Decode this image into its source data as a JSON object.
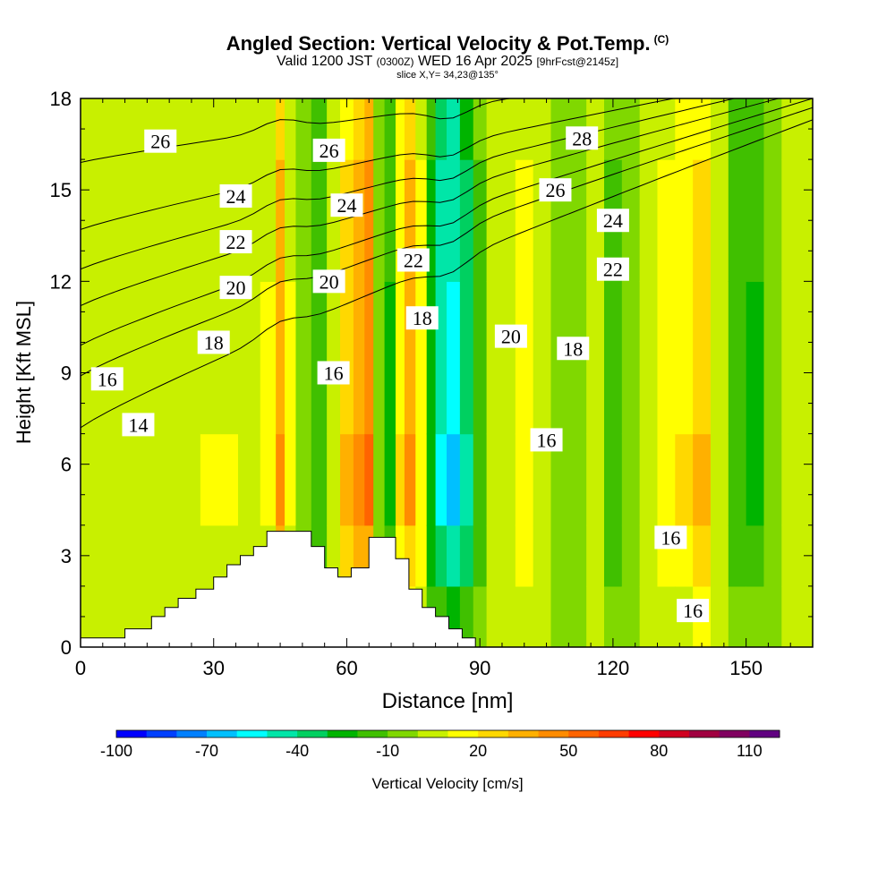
{
  "header": {
    "title": "Angled Section: Vertical Velocity & Pot.Temp.",
    "title_mark": "(C)",
    "valid_prefix": "Valid 1200 JST",
    "valid_utc": "(0300Z)",
    "valid_date": "WED 16 Apr 2025",
    "forecast": "[9hrFcst@2145z]",
    "slice": "slice X,Y= 34,23@135°"
  },
  "chart_data": {
    "type": "heatmap",
    "xlabel": "Distance [nm]",
    "ylabel": "Height [Kft MSL]",
    "xlim": [
      0,
      165
    ],
    "ylim": [
      0,
      18
    ],
    "x_ticks": [
      0,
      30,
      60,
      90,
      120,
      150
    ],
    "y_ticks": [
      0,
      3,
      6,
      9,
      12,
      15,
      18
    ],
    "colorbar": {
      "label": "Vertical Velocity [cm/s]",
      "min": -100,
      "max": 120,
      "step": 10,
      "tick_labels": [
        "-100",
        "-70",
        "-40",
        "-10",
        "20",
        "50",
        "80",
        "110"
      ],
      "colors": [
        "#0000ff",
        "#0040ff",
        "#0080ff",
        "#00c0ff",
        "#00ffff",
        "#00e6a8",
        "#00d060",
        "#00b400",
        "#40c000",
        "#80d800",
        "#c8f000",
        "#ffff00",
        "#ffd800",
        "#ffb000",
        "#ff8c00",
        "#ff6400",
        "#ff3c00",
        "#ff0000",
        "#d00020",
        "#a00040",
        "#800060",
        "#600080"
      ]
    },
    "columns": [
      {
        "x": 0,
        "w": 5
      },
      {
        "x": 5,
        "w": 4
      },
      {
        "x": 8,
        "w": 5
      },
      {
        "x": 12,
        "w": 5
      },
      {
        "x": 16,
        "w": 3
      },
      {
        "x": 20,
        "w": 4
      },
      {
        "x": 24,
        "w": 6
      },
      {
        "x": 30,
        "w": 10
      },
      {
        "x": 33,
        "w": 10
      },
      {
        "x": 38,
        "w": 0
      },
      {
        "x": 43,
        "w": 12
      },
      {
        "x": 45,
        "w": 45
      },
      {
        "x": 47,
        "w": 12
      },
      {
        "x": 50,
        "w": -10
      },
      {
        "x": 54,
        "w": -20
      },
      {
        "x": 57,
        "w": 5
      },
      {
        "x": 60,
        "w": 30
      },
      {
        "x": 63,
        "w": 45
      },
      {
        "x": 65,
        "w": 55
      },
      {
        "x": 67,
        "w": -5
      },
      {
        "x": 70,
        "w": -25
      },
      {
        "x": 72,
        "w": 20
      },
      {
        "x": 74,
        "w": 40
      },
      {
        "x": 77,
        "w": 15
      },
      {
        "x": 79,
        "w": -30
      },
      {
        "x": 81,
        "w": -55
      },
      {
        "x": 84,
        "w": -65
      },
      {
        "x": 87,
        "w": -45
      },
      {
        "x": 90,
        "w": -15
      },
      {
        "x": 93,
        "w": 0
      },
      {
        "x": 96,
        "w": 8
      },
      {
        "x": 100,
        "w": 15
      },
      {
        "x": 104,
        "w": 3
      },
      {
        "x": 108,
        "w": -10
      },
      {
        "x": 112,
        "w": -5
      },
      {
        "x": 116,
        "w": 0
      },
      {
        "x": 120,
        "w": -15
      },
      {
        "x": 124,
        "w": -8
      },
      {
        "x": 128,
        "w": 5
      },
      {
        "x": 132,
        "w": 15
      },
      {
        "x": 136,
        "w": 20
      },
      {
        "x": 140,
        "w": 30
      },
      {
        "x": 144,
        "w": 5
      },
      {
        "x": 148,
        "w": -20
      },
      {
        "x": 152,
        "w": -25
      },
      {
        "x": 156,
        "w": -10
      },
      {
        "x": 160,
        "w": 3
      },
      {
        "x": 165,
        "w": 3
      }
    ],
    "terrain": [
      [
        0,
        0.3
      ],
      [
        10,
        0.3
      ],
      [
        10,
        0.6
      ],
      [
        16,
        0.6
      ],
      [
        16,
        1.0
      ],
      [
        19,
        1.0
      ],
      [
        19,
        1.3
      ],
      [
        22,
        1.3
      ],
      [
        22,
        1.6
      ],
      [
        26,
        1.6
      ],
      [
        26,
        1.9
      ],
      [
        30,
        1.9
      ],
      [
        30,
        2.3
      ],
      [
        33,
        2.3
      ],
      [
        33,
        2.7
      ],
      [
        36,
        2.7
      ],
      [
        36,
        3.0
      ],
      [
        39,
        3.0
      ],
      [
        39,
        3.3
      ],
      [
        42,
        3.3
      ],
      [
        42,
        3.8
      ],
      [
        52,
        3.8
      ],
      [
        52,
        3.3
      ],
      [
        55,
        3.3
      ],
      [
        55,
        2.6
      ],
      [
        58,
        2.6
      ],
      [
        58,
        2.3
      ],
      [
        61,
        2.3
      ],
      [
        61,
        2.6
      ],
      [
        65,
        2.6
      ],
      [
        65,
        3.6
      ],
      [
        71,
        3.6
      ],
      [
        71,
        2.9
      ],
      [
        74,
        2.9
      ],
      [
        74,
        1.9
      ],
      [
        77,
        1.9
      ],
      [
        77,
        1.3
      ],
      [
        80,
        1.3
      ],
      [
        80,
        1.0
      ],
      [
        83,
        1.0
      ],
      [
        83,
        0.6
      ],
      [
        86,
        0.6
      ],
      [
        86,
        0.3
      ],
      [
        89,
        0.3
      ],
      [
        89,
        0
      ]
    ],
    "theta_contours": [
      {
        "value": "14",
        "y0": 7.2,
        "y1": 17.3,
        "label_x": 13,
        "label_y": 7.3
      },
      {
        "value": "16",
        "y0": 8.9,
        "y1": 17.7,
        "label_x": 6,
        "label_y": 8.8
      },
      {
        "value": "18",
        "y0": 9.9,
        "y1": 18.0,
        "label_x": 30,
        "label_y": 10.0
      },
      {
        "value": "20",
        "y0": 11.2,
        "y1": 18.3,
        "label_x": 35,
        "label_y": 11.8
      },
      {
        "value": "22",
        "y0": 12.4,
        "y1": 18.6,
        "label_x": 35,
        "label_y": 13.3
      },
      {
        "value": "24",
        "y0": 13.7,
        "y1": 18.9,
        "label_x": 35,
        "label_y": 14.8
      },
      {
        "value": "26",
        "y0": 15.9,
        "y1": 19.3,
        "label_x": 18,
        "label_y": 16.6
      }
    ],
    "contour_labels": [
      {
        "text": "14",
        "x": 13,
        "y": 7.3
      },
      {
        "text": "16",
        "x": 6,
        "y": 8.8
      },
      {
        "text": "16",
        "x": 57,
        "y": 9.0
      },
      {
        "text": "16",
        "x": 105,
        "y": 6.8
      },
      {
        "text": "16",
        "x": 133,
        "y": 3.6
      },
      {
        "text": "16",
        "x": 138,
        "y": 1.2
      },
      {
        "text": "18",
        "x": 30,
        "y": 10.0
      },
      {
        "text": "18",
        "x": 77,
        "y": 10.8
      },
      {
        "text": "18",
        "x": 111,
        "y": 9.8
      },
      {
        "text": "20",
        "x": 35,
        "y": 11.8
      },
      {
        "text": "20",
        "x": 56,
        "y": 12.0
      },
      {
        "text": "20",
        "x": 97,
        "y": 10.2
      },
      {
        "text": "22",
        "x": 35,
        "y": 13.3
      },
      {
        "text": "22",
        "x": 75,
        "y": 12.7
      },
      {
        "text": "22",
        "x": 120,
        "y": 12.4
      },
      {
        "text": "24",
        "x": 35,
        "y": 14.8
      },
      {
        "text": "24",
        "x": 60,
        "y": 14.5
      },
      {
        "text": "24",
        "x": 120,
        "y": 14.0
      },
      {
        "text": "26",
        "x": 18,
        "y": 16.6
      },
      {
        "text": "26",
        "x": 56,
        "y": 16.3
      },
      {
        "text": "26",
        "x": 107,
        "y": 15.0
      },
      {
        "text": "28",
        "x": 113,
        "y": 16.7
      }
    ]
  }
}
